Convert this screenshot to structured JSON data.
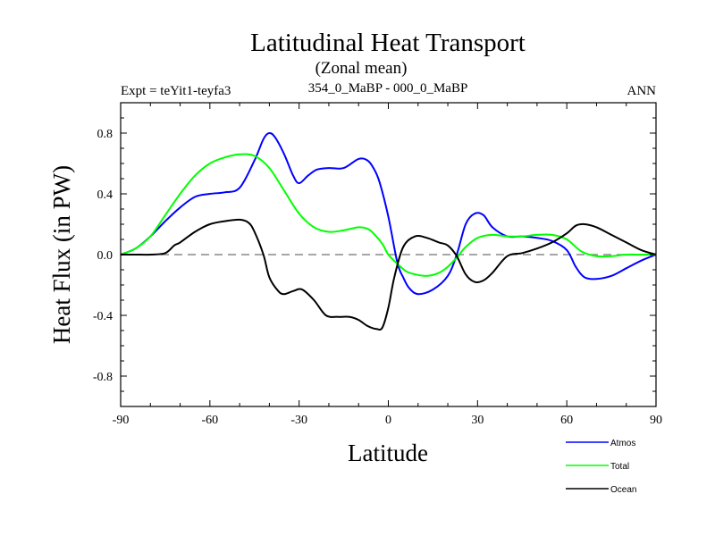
{
  "chart_data": {
    "type": "line",
    "title": "Latitudinal Heat Transport",
    "subtitle": "(Zonal mean)",
    "left_label": "Expt = teYit1-teyfa3",
    "center_label": "354_0_MaBP - 000_0_MaBP",
    "right_label": "ANN",
    "xlabel": "Latitude",
    "ylabel": "Heat Flux (in PW)",
    "xlim": [
      -90,
      90
    ],
    "ylim": [
      -1.0,
      1.0
    ],
    "xticks": [
      -90,
      -60,
      -30,
      0,
      30,
      60,
      90
    ],
    "xtick_labels": [
      "-90",
      "-60",
      "-30",
      "0",
      "30",
      "60",
      "90"
    ],
    "yticks": [
      -0.8,
      -0.4,
      0.0,
      0.4,
      0.8
    ],
    "ytick_labels": [
      "-0.8",
      "-0.4",
      "0.0",
      "0.4",
      "0.8"
    ],
    "zero_line": "dashed",
    "legend_position": "bottom-right",
    "series": [
      {
        "name": "Atmos",
        "color": "#0000ff",
        "x": [
          -90,
          -85,
          -80,
          -75,
          -70,
          -65,
          -60,
          -55,
          -50,
          -45,
          -42,
          -40,
          -38,
          -35,
          -32,
          -30,
          -27,
          -24,
          -20,
          -15,
          -10,
          -7,
          -5,
          -3,
          0,
          3,
          5,
          7,
          10,
          15,
          20,
          23,
          26,
          29,
          32,
          35,
          40,
          45,
          50,
          55,
          60,
          63,
          66,
          70,
          75,
          80,
          85,
          90
        ],
        "y": [
          0.0,
          0.04,
          0.12,
          0.22,
          0.31,
          0.38,
          0.4,
          0.41,
          0.44,
          0.62,
          0.76,
          0.8,
          0.77,
          0.66,
          0.52,
          0.47,
          0.52,
          0.56,
          0.57,
          0.57,
          0.63,
          0.62,
          0.57,
          0.48,
          0.25,
          -0.05,
          -0.15,
          -0.22,
          -0.26,
          -0.23,
          -0.14,
          0.0,
          0.2,
          0.27,
          0.26,
          0.18,
          0.12,
          0.12,
          0.11,
          0.09,
          0.03,
          -0.08,
          -0.15,
          -0.16,
          -0.14,
          -0.09,
          -0.04,
          0.0
        ]
      },
      {
        "name": "Total",
        "color": "#00ff00",
        "x": [
          -90,
          -85,
          -80,
          -75,
          -70,
          -65,
          -60,
          -55,
          -50,
          -45,
          -40,
          -35,
          -30,
          -25,
          -20,
          -15,
          -10,
          -7,
          -5,
          -2,
          0,
          3,
          6,
          9,
          13,
          17,
          20,
          23,
          26,
          30,
          35,
          40,
          45,
          50,
          55,
          60,
          65,
          70,
          75,
          80,
          85,
          90
        ],
        "y": [
          0.0,
          0.04,
          0.12,
          0.26,
          0.4,
          0.52,
          0.6,
          0.64,
          0.66,
          0.65,
          0.57,
          0.42,
          0.27,
          0.18,
          0.15,
          0.16,
          0.18,
          0.17,
          0.14,
          0.07,
          0.0,
          -0.06,
          -0.11,
          -0.13,
          -0.14,
          -0.12,
          -0.08,
          -0.02,
          0.05,
          0.11,
          0.13,
          0.12,
          0.12,
          0.13,
          0.13,
          0.1,
          0.02,
          -0.01,
          -0.01,
          0.0,
          0.0,
          0.0
        ]
      },
      {
        "name": "Ocean",
        "color": "#000000",
        "x": [
          -90,
          -85,
          -80,
          -75,
          -72,
          -70,
          -65,
          -60,
          -55,
          -50,
          -47,
          -45,
          -42,
          -40,
          -37,
          -35,
          -32,
          -29,
          -25,
          -21,
          -17,
          -13,
          -10,
          -7,
          -4,
          -2,
          0,
          2,
          5,
          9,
          13,
          17,
          20,
          23,
          26,
          29,
          32,
          35,
          40,
          45,
          50,
          55,
          60,
          63,
          66,
          70,
          75,
          80,
          85,
          90
        ],
        "y": [
          0.0,
          0.0,
          0.0,
          0.01,
          0.06,
          0.08,
          0.15,
          0.2,
          0.22,
          0.23,
          0.21,
          0.15,
          0.0,
          -0.15,
          -0.24,
          -0.26,
          -0.24,
          -0.23,
          -0.3,
          -0.4,
          -0.41,
          -0.41,
          -0.43,
          -0.47,
          -0.49,
          -0.48,
          -0.35,
          -0.15,
          0.05,
          0.12,
          0.11,
          0.08,
          0.06,
          -0.01,
          -0.13,
          -0.18,
          -0.17,
          -0.12,
          -0.01,
          0.01,
          0.04,
          0.08,
          0.14,
          0.19,
          0.2,
          0.18,
          0.13,
          0.08,
          0.03,
          0.0
        ]
      }
    ]
  }
}
